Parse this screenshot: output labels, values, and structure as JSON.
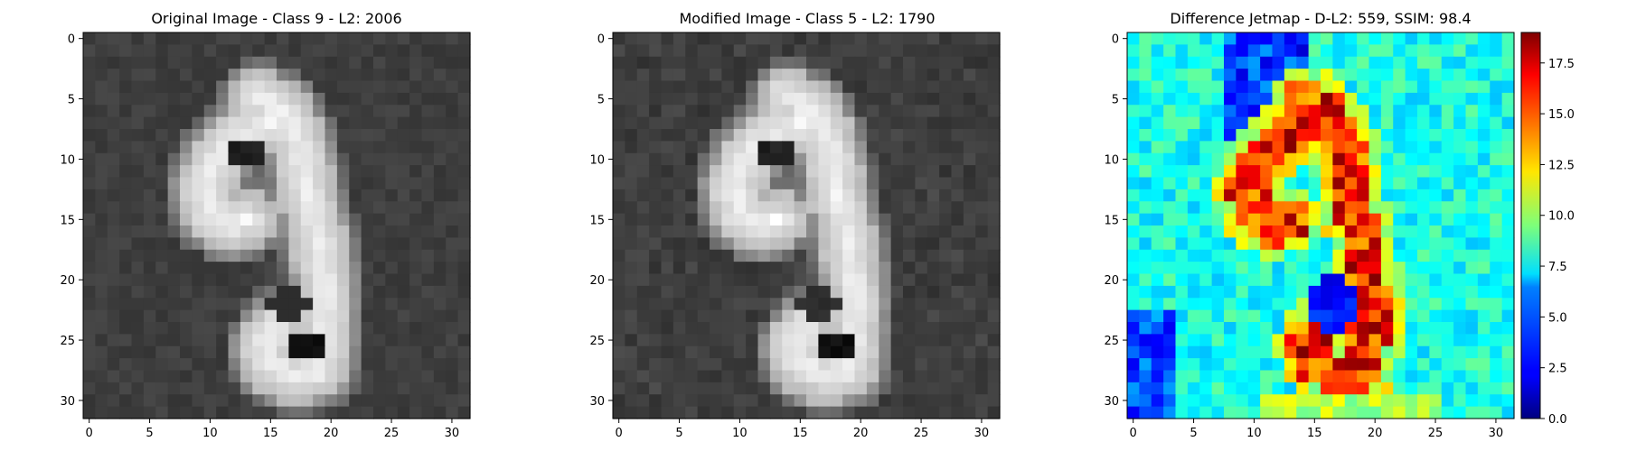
{
  "figure": {
    "background": "#ffffff",
    "tick_color": "#000000",
    "frame_color": "#000000"
  },
  "panels": [
    {
      "id": "original",
      "title": "Original Image - Class 9 - L2: 2006",
      "title_color": "#000000",
      "colormap": "gray",
      "value_range": [
        0,
        255
      ]
    },
    {
      "id": "modified",
      "title": "Modified Image - Class 5 - L2: 1790",
      "title_color": "#ff0000",
      "colormap": "gray",
      "value_range": [
        0,
        255
      ]
    },
    {
      "id": "difference",
      "title": "Difference Jetmap - D-L2: 559, SSIM: 98.4",
      "title_color": "#000000",
      "colormap": "jet",
      "value_range": [
        0,
        19
      ]
    }
  ],
  "chart_data": [
    {
      "type": "heatmap",
      "title": "Original Image - Class 9 - L2: 2006",
      "grid_size": [
        32,
        32
      ],
      "xlim": [
        -0.5,
        31.5
      ],
      "ylim": [
        31.5,
        -0.5
      ],
      "xticks": [
        0,
        5,
        10,
        15,
        20,
        25,
        30
      ],
      "yticks": [
        0,
        5,
        10,
        15,
        20,
        25,
        30
      ],
      "content": "grayscale image of a handwritten digit 9"
    },
    {
      "type": "heatmap",
      "title": "Modified Image - Class 5 - L2: 1790",
      "grid_size": [
        32,
        32
      ],
      "xlim": [
        -0.5,
        31.5
      ],
      "ylim": [
        31.5,
        -0.5
      ],
      "xticks": [
        0,
        5,
        10,
        15,
        20,
        25,
        30
      ],
      "yticks": [
        0,
        5,
        10,
        15,
        20,
        25,
        30
      ],
      "content": "grayscale image of a handwritten digit 9, slightly perturbed"
    },
    {
      "type": "heatmap",
      "title": "Difference Jetmap - D-L2: 559, SSIM: 98.4",
      "grid_size": [
        32,
        32
      ],
      "xlim": [
        -0.5,
        31.5
      ],
      "ylim": [
        31.5,
        -0.5
      ],
      "xticks": [
        0,
        5,
        10,
        15,
        20,
        25,
        30
      ],
      "yticks": [
        0,
        5,
        10,
        15,
        20,
        25,
        30
      ],
      "colorbar": {
        "min": 0.0,
        "max": 19.0,
        "ticks": [
          "0.0",
          "2.5",
          "5.0",
          "7.5",
          "10.0",
          "12.5",
          "15.0",
          "17.5"
        ]
      }
    }
  ]
}
